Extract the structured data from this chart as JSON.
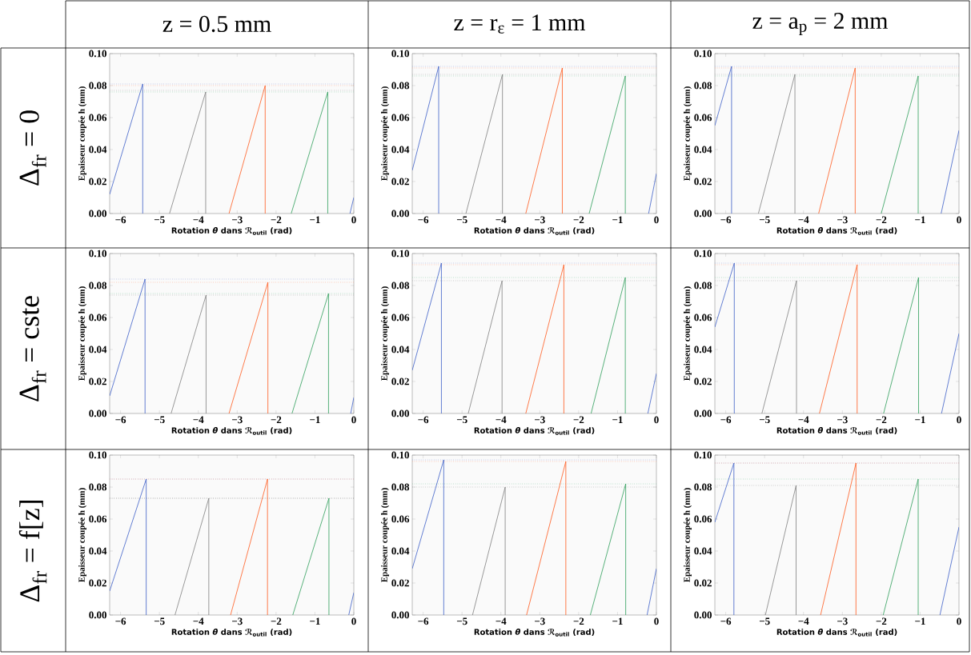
{
  "chart_data": [
    {
      "type": "line",
      "title": "z = 0.5 mm",
      "annotations": [
        "Δ$_{fr}$ = 0"
      ],
      "xlabel": "Rotation *θ* dans ℛ$_{outil}$ (rad)",
      "ylabel": "Epaisseur coupée h (mm)",
      "xlim": [
        -6.28,
        0
      ],
      "ylim": [
        0,
        0.1
      ],
      "xticks": [
        {
          "value": -6,
          "label": "−6"
        },
        {
          "value": -5,
          "label": "−5"
        },
        {
          "value": -4,
          "label": "−4"
        },
        {
          "value": -3,
          "label": "−3"
        },
        {
          "value": -2,
          "label": "−2"
        },
        {
          "value": -1,
          "label": "−1"
        },
        0
      ],
      "yticks": [
        {
          "value": 0,
          "label": "0.00"
        },
        {
          "value": 0.02,
          "label": "0.02"
        },
        {
          "value": 0.04,
          "label": "0.04"
        },
        {
          "value": 0.06,
          "label": "0.06"
        },
        {
          "value": 0.08,
          "label": "0.08"
        },
        {
          "value": 0.1,
          "label": "0.10"
        }
      ],
      "series": [
        {
          "color": "#3d5fc8",
          "x": [
            -6.28,
            -5.43,
            -5.43,
            null,
            -0.1,
            0
          ],
          "values": [
            0.012,
            0.081,
            0,
            null,
            0,
            0.01
          ]
        },
        {
          "color": "#808080",
          "x": [
            -4.74,
            -3.81,
            -3.81
          ],
          "values": [
            0,
            0.076,
            0
          ]
        },
        {
          "color": "#ff5a1e",
          "x": [
            -3.21,
            -2.28,
            -2.28
          ],
          "values": [
            0,
            0.08,
            0
          ]
        },
        {
          "color": "#2e9e5a",
          "x": [
            -1.61,
            -0.67,
            -0.67
          ],
          "values": [
            0,
            0.076,
            0
          ]
        }
      ],
      "ref_lines": [
        {
          "axis": "y",
          "value": 0.081,
          "color": "#8fa0e0",
          "line_style": "dotted"
        },
        {
          "axis": "y",
          "value": 0.08,
          "color": "#ffa080",
          "line_style": "dotted"
        },
        {
          "axis": "y",
          "value": 0.077,
          "color": "#a0a0a0",
          "line_style": "dotted"
        },
        {
          "axis": "y",
          "value": 0.076,
          "color": "#80c8a0",
          "line_style": "dotted"
        }
      ]
    },
    {
      "type": "line",
      "title": "z = r$_{ε}$ = 1 mm",
      "xlabel": "Rotation *θ* dans ℛ$_{outil}$ (rad)",
      "ylabel": "Epaisseur coupée h (mm)",
      "xlim": [
        -6.28,
        0
      ],
      "ylim": [
        0,
        0.1
      ],
      "xticks": [
        {
          "value": -6,
          "label": "−6"
        },
        {
          "value": -5,
          "label": "−5"
        },
        {
          "value": -4,
          "label": "−4"
        },
        {
          "value": -3,
          "label": "−3"
        },
        {
          "value": -2,
          "label": "−2"
        },
        {
          "value": -1,
          "label": "−1"
        },
        0
      ],
      "yticks": [
        {
          "value": 0,
          "label": "0.00"
        },
        {
          "value": 0.02,
          "label": "0.02"
        },
        {
          "value": 0.04,
          "label": "0.04"
        },
        {
          "value": 0.06,
          "label": "0.06"
        },
        {
          "value": 0.08,
          "label": "0.08"
        },
        {
          "value": 0.1,
          "label": "0.10"
        }
      ],
      "series": [
        {
          "color": "#3d5fc8",
          "x": [
            -6.28,
            -5.6,
            -5.6,
            null,
            -0.2,
            0
          ],
          "values": [
            0.027,
            0.092,
            0,
            null,
            0,
            0.025
          ]
        },
        {
          "color": "#808080",
          "x": [
            -4.9,
            -3.96,
            -3.96
          ],
          "values": [
            0,
            0.087,
            0
          ]
        },
        {
          "color": "#ff5a1e",
          "x": [
            -3.36,
            -2.42,
            -2.42
          ],
          "values": [
            0,
            0.091,
            0
          ]
        },
        {
          "color": "#2e9e5a",
          "x": [
            -1.73,
            -0.8,
            -0.8
          ],
          "values": [
            0,
            0.086,
            0
          ]
        }
      ],
      "ref_lines": [
        {
          "axis": "y",
          "value": 0.092,
          "color": "#8fa0e0",
          "line_style": "dotted"
        },
        {
          "axis": "y",
          "value": 0.091,
          "color": "#ffa080",
          "line_style": "dotted"
        },
        {
          "axis": "y",
          "value": 0.087,
          "color": "#a0a0a0",
          "line_style": "dotted"
        },
        {
          "axis": "y",
          "value": 0.086,
          "color": "#80c8a0",
          "line_style": "dotted"
        }
      ]
    },
    {
      "type": "line",
      "title": "z = a$_{p}$ = 2 mm",
      "xlabel": "Rotation *θ* dans ℛ$_{outil}$ (rad)",
      "ylabel": "Epaisseur coupée h (mm)",
      "xlim": [
        -6.28,
        0
      ],
      "ylim": [
        0,
        0.1
      ],
      "xticks": [
        {
          "value": -6,
          "label": "−6"
        },
        {
          "value": -5,
          "label": "−5"
        },
        {
          "value": -4,
          "label": "−4"
        },
        {
          "value": -3,
          "label": "−3"
        },
        {
          "value": -2,
          "label": "−2"
        },
        {
          "value": -1,
          "label": "−1"
        },
        0
      ],
      "yticks": [
        {
          "value": 0,
          "label": "0.00"
        },
        {
          "value": 0.02,
          "label": "0.02"
        },
        {
          "value": 0.04,
          "label": "0.04"
        },
        {
          "value": 0.06,
          "label": "0.06"
        },
        {
          "value": 0.08,
          "label": "0.08"
        },
        {
          "value": 0.1,
          "label": "0.10"
        }
      ],
      "series": [
        {
          "color": "#3d5fc8",
          "x": [
            -6.28,
            -5.85,
            -5.85,
            null,
            -0.46,
            0
          ],
          "values": [
            0.055,
            0.092,
            0,
            null,
            0,
            0.052
          ]
        },
        {
          "color": "#808080",
          "x": [
            -5.16,
            -4.22,
            -4.22
          ],
          "values": [
            0,
            0.087,
            0
          ]
        },
        {
          "color": "#ff5a1e",
          "x": [
            -3.61,
            -2.67,
            -2.67
          ],
          "values": [
            0,
            0.091,
            0
          ]
        },
        {
          "color": "#2e9e5a",
          "x": [
            -2.0,
            -1.05,
            -1.05
          ],
          "values": [
            0,
            0.086,
            0
          ]
        }
      ],
      "ref_lines": [
        {
          "axis": "y",
          "value": 0.092,
          "color": "#8fa0e0",
          "line_style": "dotted"
        },
        {
          "axis": "y",
          "value": 0.091,
          "color": "#ffa080",
          "line_style": "dotted"
        },
        {
          "axis": "y",
          "value": 0.087,
          "color": "#a0a0a0",
          "line_style": "dotted"
        },
        {
          "axis": "y",
          "value": 0.086,
          "color": "#80c8a0",
          "line_style": "dotted"
        }
      ]
    },
    {
      "type": "line",
      "annotations": [
        "Δ$_{fr}$ = cste"
      ],
      "xlabel": "Rotation *θ* dans ℛ$_{outil}$ (rad)",
      "ylabel": "Epaisseur coupée h (mm)",
      "xlim": [
        -6.28,
        0
      ],
      "ylim": [
        0,
        0.1
      ],
      "xticks": [
        {
          "value": -6,
          "label": "−6"
        },
        {
          "value": -5,
          "label": "−5"
        },
        {
          "value": -4,
          "label": "−4"
        },
        {
          "value": -3,
          "label": "−3"
        },
        {
          "value": -2,
          "label": "−2"
        },
        {
          "value": -1,
          "label": "−1"
        },
        0
      ],
      "yticks": [
        {
          "value": 0,
          "label": "0.00"
        },
        {
          "value": 0.02,
          "label": "0.02"
        },
        {
          "value": 0.04,
          "label": "0.04"
        },
        {
          "value": 0.06,
          "label": "0.06"
        },
        {
          "value": 0.08,
          "label": "0.08"
        },
        {
          "value": 0.1,
          "label": "0.10"
        }
      ],
      "series": [
        {
          "color": "#3d5fc8",
          "x": [
            -6.28,
            -5.37,
            -5.37,
            null,
            -0.08,
            0
          ],
          "values": [
            0.011,
            0.084,
            0,
            null,
            0,
            0.01
          ]
        },
        {
          "color": "#808080",
          "x": [
            -4.7,
            -3.8,
            -3.8
          ],
          "values": [
            0,
            0.074,
            0
          ]
        },
        {
          "color": "#ff5a1e",
          "x": [
            -3.21,
            -2.21,
            -2.21
          ],
          "values": [
            0,
            0.082,
            0
          ]
        },
        {
          "color": "#2e9e5a",
          "x": [
            -1.59,
            -0.65,
            -0.65
          ],
          "values": [
            0,
            0.075,
            0
          ]
        }
      ],
      "ref_lines": [
        {
          "axis": "y",
          "value": 0.084,
          "color": "#8fa0e0",
          "line_style": "dotted"
        },
        {
          "axis": "y",
          "value": 0.082,
          "color": "#ffa080",
          "line_style": "dotted"
        },
        {
          "axis": "y",
          "value": 0.074,
          "color": "#a0a0a0",
          "line_style": "dotted"
        },
        {
          "axis": "y",
          "value": 0.075,
          "color": "#80c8a0",
          "line_style": "dotted"
        }
      ]
    },
    {
      "type": "line",
      "xlabel": "Rotation *θ* dans ℛ$_{outil}$ (rad)",
      "ylabel": "Epaisseur coupée h (mm)",
      "xlim": [
        -6.28,
        0
      ],
      "ylim": [
        0,
        0.1
      ],
      "xticks": [
        {
          "value": -6,
          "label": "−6"
        },
        {
          "value": -5,
          "label": "−5"
        },
        {
          "value": -4,
          "label": "−4"
        },
        {
          "value": -3,
          "label": "−3"
        },
        {
          "value": -2,
          "label": "−2"
        },
        {
          "value": -1,
          "label": "−1"
        },
        0
      ],
      "yticks": [
        {
          "value": 0,
          "label": "0.00"
        },
        {
          "value": 0.02,
          "label": "0.02"
        },
        {
          "value": 0.04,
          "label": "0.04"
        },
        {
          "value": 0.06,
          "label": "0.06"
        },
        {
          "value": 0.08,
          "label": "0.08"
        },
        {
          "value": 0.1,
          "label": "0.10"
        }
      ],
      "series": [
        {
          "color": "#3d5fc8",
          "x": [
            -6.28,
            -5.53,
            -5.53,
            null,
            -0.22,
            0
          ],
          "values": [
            0.027,
            0.094,
            0,
            null,
            0,
            0.025
          ]
        },
        {
          "color": "#808080",
          "x": [
            -4.84,
            -3.97,
            -3.97
          ],
          "values": [
            0,
            0.083,
            0
          ]
        },
        {
          "color": "#ff5a1e",
          "x": [
            -3.36,
            -2.38,
            -2.38
          ],
          "values": [
            0,
            0.093,
            0
          ]
        },
        {
          "color": "#2e9e5a",
          "x": [
            -1.68,
            -0.8,
            -0.8
          ],
          "values": [
            0,
            0.085,
            0
          ]
        }
      ],
      "ref_lines": [
        {
          "axis": "y",
          "value": 0.094,
          "color": "#8fa0e0",
          "line_style": "dotted"
        },
        {
          "axis": "y",
          "value": 0.093,
          "color": "#ffa080",
          "line_style": "dotted"
        },
        {
          "axis": "y",
          "value": 0.083,
          "color": "#a0a0a0",
          "line_style": "dotted"
        },
        {
          "axis": "y",
          "value": 0.085,
          "color": "#80c8a0",
          "line_style": "dotted"
        }
      ]
    },
    {
      "type": "line",
      "xlabel": "Rotation *θ* dans ℛ$_{outil}$ (rad)",
      "ylabel": "Epaisseur coupée h (mm)",
      "xlim": [
        -6.28,
        0
      ],
      "ylim": [
        0,
        0.1
      ],
      "xticks": [
        {
          "value": -6,
          "label": "−6"
        },
        {
          "value": -5,
          "label": "−5"
        },
        {
          "value": -4,
          "label": "−4"
        },
        {
          "value": -3,
          "label": "−3"
        },
        {
          "value": -2,
          "label": "−2"
        },
        {
          "value": -1,
          "label": "−1"
        },
        0
      ],
      "yticks": [
        {
          "value": 0,
          "label": "0.00"
        },
        {
          "value": 0.02,
          "label": "0.02"
        },
        {
          "value": 0.04,
          "label": "0.04"
        },
        {
          "value": 0.06,
          "label": "0.06"
        },
        {
          "value": 0.08,
          "label": "0.08"
        },
        {
          "value": 0.1,
          "label": "0.10"
        }
      ],
      "series": [
        {
          "color": "#3d5fc8",
          "x": [
            -6.28,
            -5.78,
            -5.78,
            null,
            -0.45,
            0
          ],
          "values": [
            0.054,
            0.094,
            0,
            null,
            0,
            0.05
          ]
        },
        {
          "color": "#808080",
          "x": [
            -5.07,
            -4.18,
            -4.18
          ],
          "values": [
            0,
            0.083,
            0
          ]
        },
        {
          "color": "#ff5a1e",
          "x": [
            -3.59,
            -2.62,
            -2.62
          ],
          "values": [
            0,
            0.093,
            0
          ]
        },
        {
          "color": "#2e9e5a",
          "x": [
            -1.94,
            -1.04,
            -1.04
          ],
          "values": [
            0,
            0.085,
            0
          ]
        }
      ],
      "ref_lines": [
        {
          "axis": "y",
          "value": 0.094,
          "color": "#8fa0e0",
          "line_style": "dotted"
        },
        {
          "axis": "y",
          "value": 0.093,
          "color": "#ffa080",
          "line_style": "dotted"
        },
        {
          "axis": "y",
          "value": 0.083,
          "color": "#a0a0a0",
          "line_style": "dotted"
        },
        {
          "axis": "y",
          "value": 0.085,
          "color": "#80c8a0",
          "line_style": "dotted"
        }
      ]
    },
    {
      "type": "line",
      "annotations": [
        "Δ$_{fr}$ = f[z]"
      ],
      "xlabel": "Rotation *θ* dans ℛ$_{outil}$ (rad)",
      "ylabel": "Epaisseur coupée h (mm)",
      "xlim": [
        -6.28,
        0
      ],
      "ylim": [
        0,
        0.1
      ],
      "xticks": [
        {
          "value": -6,
          "label": "−6"
        },
        {
          "value": -5,
          "label": "−5"
        },
        {
          "value": -4,
          "label": "−4"
        },
        {
          "value": -3,
          "label": "−3"
        },
        {
          "value": -2,
          "label": "−2"
        },
        {
          "value": -1,
          "label": "−1"
        },
        0
      ],
      "yticks": [
        {
          "value": 0,
          "label": "0.00"
        },
        {
          "value": 0.02,
          "label": "0.02"
        },
        {
          "value": 0.04,
          "label": "0.04"
        },
        {
          "value": 0.06,
          "label": "0.06"
        },
        {
          "value": 0.08,
          "label": "0.08"
        },
        {
          "value": 0.1,
          "label": "0.10"
        }
      ],
      "series": [
        {
          "color": "#3d5fc8",
          "x": [
            -6.28,
            -5.34,
            -5.34,
            null,
            -0.13,
            0
          ],
          "values": [
            0.015,
            0.085,
            0,
            null,
            0,
            0.014
          ]
        },
        {
          "color": "#808080",
          "x": [
            -4.6,
            -3.73,
            -3.73
          ],
          "values": [
            0,
            0.073,
            0
          ]
        },
        {
          "color": "#ff5a1e",
          "x": [
            -3.17,
            -2.22,
            -2.22
          ],
          "values": [
            0,
            0.085,
            0
          ]
        },
        {
          "color": "#2e9e5a",
          "x": [
            -1.57,
            -0.64,
            -0.64
          ],
          "values": [
            0,
            0.073,
            0
          ]
        }
      ],
      "ref_lines": [
        {
          "axis": "y",
          "value": 0.085,
          "color": "#8fa0e0",
          "line_style": "dotted"
        },
        {
          "axis": "y",
          "value": 0.085,
          "color": "#ffa080",
          "line_style": "dotted"
        },
        {
          "axis": "y",
          "value": 0.073,
          "color": "#606060",
          "line_style": "dotted"
        }
      ]
    },
    {
      "type": "line",
      "xlabel": "Rotation *θ* dans ℛ$_{outil}$ (rad)",
      "ylabel": "Epaisseur coupée h (mm)",
      "xlim": [
        -6.28,
        0
      ],
      "ylim": [
        0,
        0.1
      ],
      "xticks": [
        {
          "value": -6,
          "label": "−6"
        },
        {
          "value": -5,
          "label": "−5"
        },
        {
          "value": -4,
          "label": "−4"
        },
        {
          "value": -3,
          "label": "−3"
        },
        {
          "value": -2,
          "label": "−2"
        },
        {
          "value": -1,
          "label": "−1"
        },
        0
      ],
      "yticks": [
        {
          "value": 0,
          "label": "0.00"
        },
        {
          "value": 0.02,
          "label": "0.02"
        },
        {
          "value": 0.04,
          "label": "0.04"
        },
        {
          "value": 0.06,
          "label": "0.06"
        },
        {
          "value": 0.08,
          "label": "0.08"
        },
        {
          "value": 0.1,
          "label": "0.10"
        }
      ],
      "series": [
        {
          "color": "#3d5fc8",
          "x": [
            -6.28,
            -5.47,
            -5.47,
            null,
            -0.24,
            0
          ],
          "values": [
            0.029,
            0.097,
            0,
            null,
            0,
            0.029
          ]
        },
        {
          "color": "#808080",
          "x": [
            -4.73,
            -3.89,
            -3.89
          ],
          "values": [
            0,
            0.08,
            0
          ]
        },
        {
          "color": "#ff5a1e",
          "x": [
            -3.34,
            -2.33,
            -2.33
          ],
          "values": [
            0,
            0.096,
            0
          ]
        },
        {
          "color": "#2e9e5a",
          "x": [
            -1.7,
            -0.79,
            -0.79
          ],
          "values": [
            0,
            0.082,
            0
          ]
        }
      ],
      "ref_lines": [
        {
          "axis": "y",
          "value": 0.097,
          "color": "#8fa0e0",
          "line_style": "dotted"
        },
        {
          "axis": "y",
          "value": 0.096,
          "color": "#ffa080",
          "line_style": "dotted"
        },
        {
          "axis": "y",
          "value": 0.08,
          "color": "#a0a0a0",
          "line_style": "dotted"
        },
        {
          "axis": "y",
          "value": 0.082,
          "color": "#80c8a0",
          "line_style": "dotted"
        }
      ]
    },
    {
      "type": "line",
      "xlabel": "Rotation *θ* dans ℛ$_{outil}$ (rad)",
      "ylabel": "Epaisseur coupée h (mm)",
      "xlim": [
        -6.28,
        0
      ],
      "ylim": [
        0,
        0.1
      ],
      "xticks": [
        {
          "value": -6,
          "label": "−6"
        },
        {
          "value": -5,
          "label": "−5"
        },
        {
          "value": -4,
          "label": "−4"
        },
        {
          "value": -3,
          "label": "−3"
        },
        {
          "value": -2,
          "label": "−2"
        },
        {
          "value": -1,
          "label": "−1"
        },
        0
      ],
      "yticks": [
        {
          "value": 0,
          "label": "0.00"
        },
        {
          "value": 0.02,
          "label": "0.02"
        },
        {
          "value": 0.04,
          "label": "0.04"
        },
        {
          "value": 0.06,
          "label": "0.06"
        },
        {
          "value": 0.08,
          "label": "0.08"
        },
        {
          "value": 0.1,
          "label": "0.10"
        }
      ],
      "series": [
        {
          "color": "#3d5fc8",
          "x": [
            -6.28,
            -5.79,
            -5.79,
            null,
            -0.49,
            0
          ],
          "values": [
            0.058,
            0.095,
            0,
            null,
            0,
            0.055
          ]
        },
        {
          "color": "#808080",
          "x": [
            -4.98,
            -4.19,
            -4.19
          ],
          "values": [
            0,
            0.081,
            0
          ]
        },
        {
          "color": "#ff5a1e",
          "x": [
            -3.56,
            -2.65,
            -2.65
          ],
          "values": [
            0,
            0.095,
            0
          ]
        },
        {
          "color": "#2e9e5a",
          "x": [
            -1.95,
            -1.05,
            -1.05
          ],
          "values": [
            0,
            0.085,
            0
          ]
        }
      ],
      "ref_lines": [
        {
          "axis": "y",
          "value": 0.095,
          "color": "#8fa0e0",
          "line_style": "dotted"
        },
        {
          "axis": "y",
          "value": 0.095,
          "color": "#ffa080",
          "line_style": "dotted"
        },
        {
          "axis": "y",
          "value": 0.081,
          "color": "#a0a0a0",
          "line_style": "dotted"
        },
        {
          "axis": "y",
          "value": 0.085,
          "color": "#80c8a0",
          "line_style": "dotted"
        }
      ]
    }
  ]
}
